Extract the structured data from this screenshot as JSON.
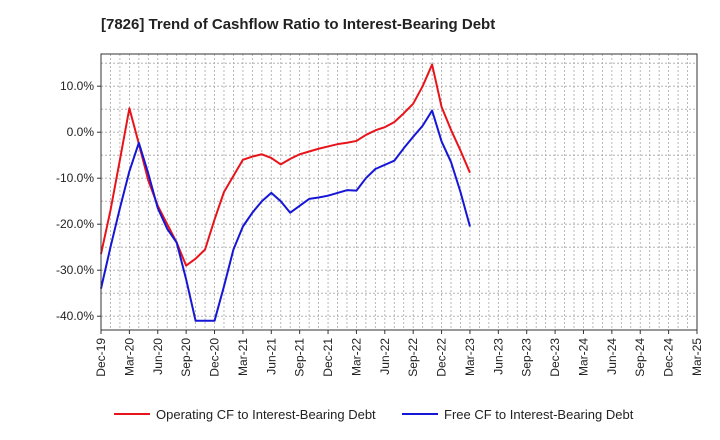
{
  "chart_data": {
    "type": "line",
    "title": "[7826]  Trend of Cashflow Ratio to Interest-Bearing Debt",
    "x_labels": [
      "Dec-19",
      "Mar-20",
      "Jun-20",
      "Sep-20",
      "Dec-20",
      "Mar-21",
      "Jun-21",
      "Sep-21",
      "Dec-21",
      "Mar-22",
      "Jun-22",
      "Sep-22",
      "Dec-22",
      "Mar-23",
      "Jun-23",
      "Sep-23",
      "Dec-23",
      "Mar-24",
      "Jun-24",
      "Sep-24",
      "Dec-24",
      "Mar-25"
    ],
    "y_ticks": [
      10,
      0,
      -10,
      -20,
      -30,
      -40
    ],
    "y_tick_labels": [
      "10.0%",
      "0.0%",
      "-10.0%",
      "-20.0%",
      "-30.0%",
      "-40.0%"
    ],
    "ylim": [
      -43,
      17
    ],
    "grid": true,
    "legend_position": "bottom",
    "series": [
      {
        "name": "Operating CF to Interest-Bearing Debt",
        "color": "#e8141b",
        "points": [
          [
            0,
            -26.5
          ],
          [
            1,
            -17
          ],
          [
            2,
            -6
          ],
          [
            3,
            5.2
          ],
          [
            4,
            -2.5
          ],
          [
            5,
            -10.5
          ],
          [
            6,
            -16
          ],
          [
            7,
            -20
          ],
          [
            8,
            -24
          ],
          [
            9,
            -29
          ],
          [
            10,
            -27.5
          ],
          [
            11,
            -25.5
          ],
          [
            12,
            -19
          ],
          [
            13,
            -13
          ],
          [
            14,
            -9.5
          ],
          [
            15,
            -6
          ],
          [
            16,
            -5.3
          ],
          [
            17,
            -4.8
          ],
          [
            18,
            -5.6
          ],
          [
            19,
            -7
          ],
          [
            20,
            -5.8
          ],
          [
            21,
            -4.8
          ],
          [
            22,
            -4.2
          ],
          [
            23,
            -3.6
          ],
          [
            24,
            -3.1
          ],
          [
            25,
            -2.6
          ],
          [
            26,
            -2.3
          ],
          [
            27,
            -1.9
          ],
          [
            28,
            -0.6
          ],
          [
            29,
            0.4
          ],
          [
            30,
            1.1
          ],
          [
            31,
            2.2
          ],
          [
            32,
            4.1
          ],
          [
            33,
            6.2
          ],
          [
            34,
            10
          ],
          [
            35,
            14.7
          ],
          [
            36,
            5.5
          ],
          [
            37,
            0.5
          ],
          [
            38,
            -4
          ],
          [
            39,
            -8.8
          ]
        ]
      },
      {
        "name": "Free CF to Interest-Bearing Debt",
        "color": "#1616d6",
        "points": [
          [
            0,
            -34
          ],
          [
            1,
            -25
          ],
          [
            2,
            -16.5
          ],
          [
            3,
            -8.5
          ],
          [
            4,
            -2.3
          ],
          [
            5,
            -9
          ],
          [
            6,
            -16.5
          ],
          [
            7,
            -21
          ],
          [
            8,
            -24
          ],
          [
            9,
            -32
          ],
          [
            10,
            -41
          ],
          [
            11,
            -41
          ],
          [
            12,
            -41
          ],
          [
            13,
            -33.5
          ],
          [
            14,
            -25.5
          ],
          [
            15,
            -20.5
          ],
          [
            16,
            -17.5
          ],
          [
            17,
            -15
          ],
          [
            18,
            -13.2
          ],
          [
            19,
            -15
          ],
          [
            20,
            -17.5
          ],
          [
            21,
            -16
          ],
          [
            22,
            -14.5
          ],
          [
            23,
            -14.2
          ],
          [
            24,
            -13.8
          ],
          [
            25,
            -13.2
          ],
          [
            26,
            -12.6
          ],
          [
            27,
            -12.7
          ],
          [
            28,
            -10
          ],
          [
            29,
            -8
          ],
          [
            30,
            -7.1
          ],
          [
            31,
            -6.2
          ],
          [
            32,
            -3.5
          ],
          [
            33,
            -1
          ],
          [
            34,
            1.4
          ],
          [
            35,
            4.7
          ],
          [
            36,
            -2
          ],
          [
            37,
            -6.5
          ],
          [
            38,
            -13
          ],
          [
            39,
            -20.5
          ]
        ]
      }
    ]
  }
}
